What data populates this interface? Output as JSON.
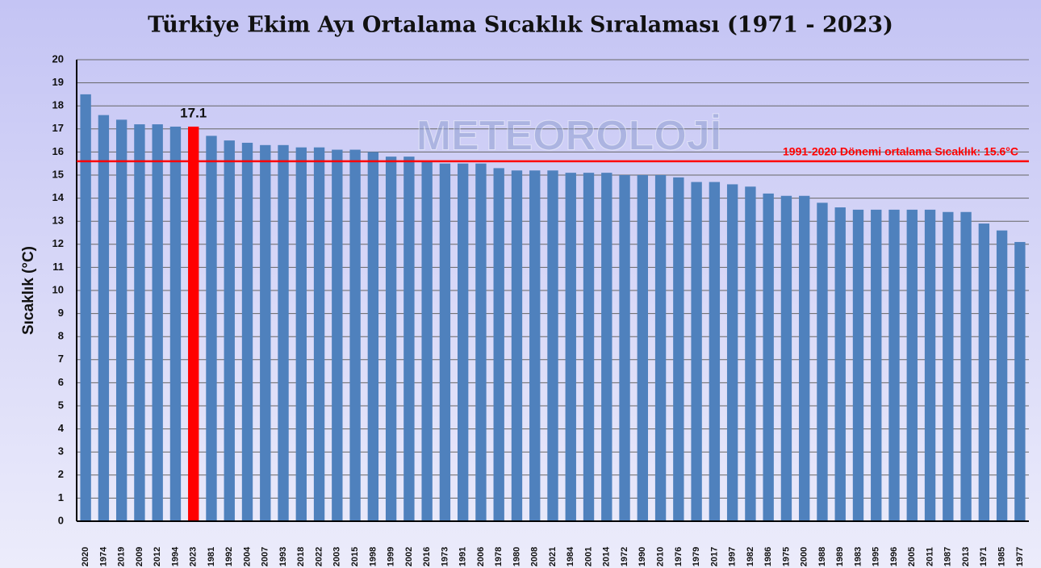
{
  "chart_data": {
    "type": "bar",
    "title": "Türkiye Ekim Ayı Ortalama Sıcaklık Sıralaması (1971 - 2023)",
    "y_label": "Sıcaklık (°C)",
    "watermark": "METEOROLOJİ",
    "categories": [
      "2020",
      "1974",
      "2019",
      "2009",
      "2012",
      "1994",
      "2023",
      "1981",
      "1992",
      "2004",
      "2007",
      "1993",
      "2018",
      "2022",
      "2003",
      "2015",
      "1998",
      "1999",
      "2002",
      "2016",
      "1973",
      "1991",
      "2006",
      "1978",
      "1980",
      "2008",
      "2021",
      "1984",
      "2001",
      "2014",
      "1972",
      "1990",
      "2010",
      "1976",
      "1979",
      "2017",
      "1997",
      "1982",
      "1986",
      "1975",
      "2000",
      "1988",
      "1989",
      "1983",
      "1995",
      "1996",
      "2005",
      "2011",
      "1987",
      "2013",
      "1971",
      "1985",
      "1977"
    ],
    "values": [
      18.5,
      17.6,
      17.4,
      17.2,
      17.2,
      17.1,
      17.1,
      16.7,
      16.5,
      16.4,
      16.3,
      16.3,
      16.2,
      16.2,
      16.1,
      16.1,
      16.0,
      15.8,
      15.8,
      15.6,
      15.5,
      15.5,
      15.5,
      15.3,
      15.2,
      15.2,
      15.2,
      15.1,
      15.1,
      15.1,
      15.0,
      15.0,
      15.0,
      14.9,
      14.7,
      14.7,
      14.6,
      14.5,
      14.2,
      14.1,
      14.1,
      13.8,
      13.6,
      13.5,
      13.5,
      13.5,
      13.5,
      13.5,
      13.4,
      13.4,
      12.9,
      12.6,
      12.1
    ],
    "value_labels": [
      null,
      null,
      null,
      null,
      null,
      null,
      "17.1",
      null,
      null,
      null,
      null,
      null,
      null,
      null,
      null,
      null,
      null,
      null,
      null,
      null,
      null,
      null,
      null,
      null,
      null,
      null,
      null,
      null,
      null,
      null,
      null,
      null,
      null,
      null,
      null,
      null,
      null,
      null,
      null,
      null,
      null,
      null,
      null,
      null,
      null,
      null,
      null,
      null,
      null,
      null,
      null,
      null,
      null
    ],
    "colors": [
      "#4f81bd",
      "#4f81bd",
      "#4f81bd",
      "#4f81bd",
      "#4f81bd",
      "#4f81bd",
      "#ff0000",
      "#4f81bd",
      "#4f81bd",
      "#4f81bd",
      "#4f81bd",
      "#4f81bd",
      "#4f81bd",
      "#4f81bd",
      "#4f81bd",
      "#4f81bd",
      "#4f81bd",
      "#4f81bd",
      "#4f81bd",
      "#4f81bd",
      "#4f81bd",
      "#4f81bd",
      "#4f81bd",
      "#4f81bd",
      "#4f81bd",
      "#4f81bd",
      "#4f81bd",
      "#4f81bd",
      "#4f81bd",
      "#4f81bd",
      "#4f81bd",
      "#4f81bd",
      "#4f81bd",
      "#4f81bd",
      "#4f81bd",
      "#4f81bd",
      "#4f81bd",
      "#4f81bd",
      "#4f81bd",
      "#4f81bd",
      "#4f81bd",
      "#4f81bd",
      "#4f81bd",
      "#4f81bd",
      "#4f81bd",
      "#4f81bd",
      "#4f81bd",
      "#4f81bd",
      "#4f81bd",
      "#4f81bd",
      "#4f81bd",
      "#4f81bd",
      "#4f81bd"
    ],
    "reference_line": {
      "value": 15.6,
      "label": "1991-2020 Dönemi ortalama Sıcaklık: 15.6°C",
      "color": "#ff0000"
    },
    "ylim": [
      0,
      20
    ],
    "yticks": [
      0,
      1,
      2,
      3,
      4,
      5,
      6,
      7,
      8,
      9,
      10,
      11,
      12,
      13,
      14,
      15,
      16,
      17,
      18,
      19,
      20
    ],
    "grid": true
  }
}
